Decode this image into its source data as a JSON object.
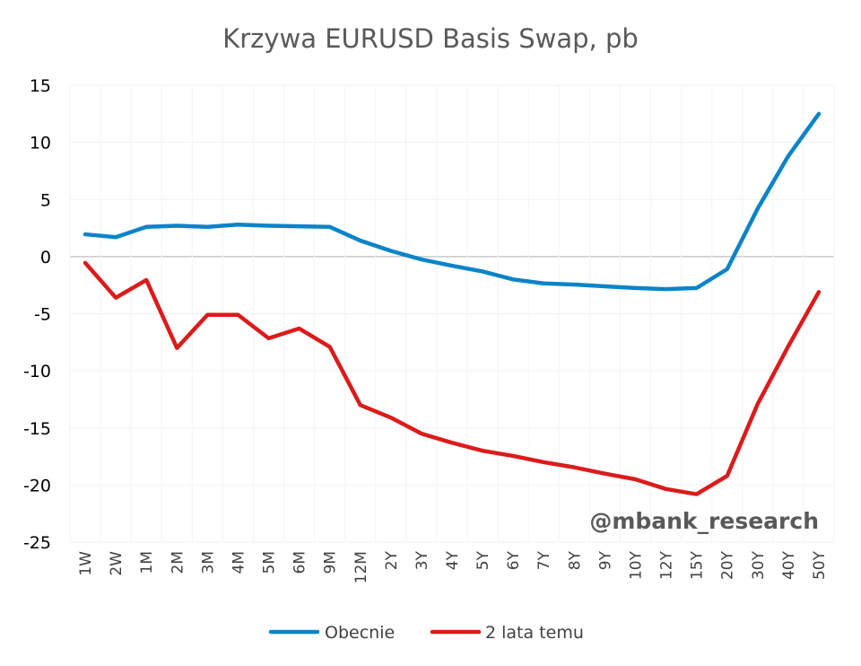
{
  "chart_data": {
    "type": "line",
    "title": "Krzywa EURUSD Basis Swap, pb",
    "xlabel": "",
    "ylabel": "",
    "ylim": [
      -25,
      15
    ],
    "yticks": [
      15,
      10,
      5,
      0,
      -5,
      -10,
      -15,
      -20,
      -25
    ],
    "grid": true,
    "legend_position": "bottom",
    "categories": [
      "1W",
      "2W",
      "1M",
      "2M",
      "3M",
      "4M",
      "5M",
      "6M",
      "9M",
      "12M",
      "2Y",
      "3Y",
      "4Y",
      "5Y",
      "6Y",
      "7Y",
      "8Y",
      "9Y",
      "10Y",
      "12Y",
      "15Y",
      "20Y",
      "30Y",
      "40Y",
      "50Y"
    ],
    "series": [
      {
        "name": "Obecnie",
        "color": "#0a84c9",
        "values": [
          1.95,
          1.7,
          2.6,
          2.7,
          2.6,
          2.8,
          2.7,
          2.65,
          2.6,
          1.4,
          0.5,
          -0.25,
          -0.8,
          -1.3,
          -2.0,
          -2.35,
          -2.45,
          -2.6,
          -2.75,
          -2.85,
          -2.75,
          -1.1,
          4.2,
          8.8,
          12.5
        ]
      },
      {
        "name": "2 lata temu",
        "color": "#dc1b1b",
        "values": [
          -0.55,
          -3.6,
          -2.05,
          -8.0,
          -5.1,
          -5.1,
          -7.15,
          -6.3,
          -7.9,
          -13.0,
          -14.1,
          -15.5,
          -16.3,
          -17.0,
          -17.45,
          -18.0,
          -18.45,
          -19.0,
          -19.5,
          -20.35,
          -20.8,
          -19.2,
          -12.9,
          -7.85,
          -3.1
        ]
      }
    ],
    "annotation": "@mbank_research"
  }
}
